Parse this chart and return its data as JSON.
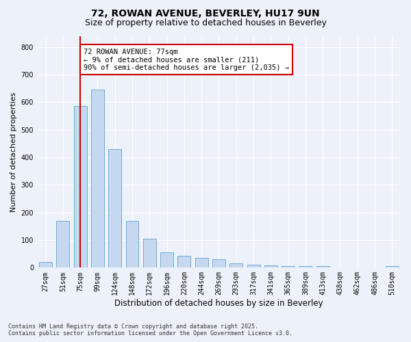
{
  "title_line1": "72, ROWAN AVENUE, BEVERLEY, HU17 9UN",
  "title_line2": "Size of property relative to detached houses in Beverley",
  "xlabel": "Distribution of detached houses by size in Beverley",
  "ylabel": "Number of detached properties",
  "categories": [
    "27sqm",
    "51sqm",
    "75sqm",
    "99sqm",
    "124sqm",
    "148sqm",
    "172sqm",
    "196sqm",
    "220sqm",
    "244sqm",
    "269sqm",
    "293sqm",
    "317sqm",
    "341sqm",
    "365sqm",
    "389sqm",
    "413sqm",
    "438sqm",
    "462sqm",
    "486sqm",
    "510sqm"
  ],
  "values": [
    20,
    170,
    585,
    645,
    430,
    170,
    105,
    55,
    42,
    35,
    30,
    15,
    10,
    8,
    7,
    5,
    5,
    0,
    0,
    0,
    5
  ],
  "bar_color": "#c5d8f0",
  "bar_edge_color": "#6eaad4",
  "bar_width": 0.75,
  "vline_x_idx": 2,
  "vline_color": "#cc0000",
  "annotation_text": "72 ROWAN AVENUE: 77sqm\n← 9% of detached houses are smaller (211)\n90% of semi-detached houses are larger (2,035) →",
  "annotation_box_color": "#ffffff",
  "annotation_border_color": "#cc0000",
  "ylim": [
    0,
    840
  ],
  "yticks": [
    0,
    100,
    200,
    300,
    400,
    500,
    600,
    700,
    800
  ],
  "background_color": "#edf2fa",
  "grid_color": "#ffffff",
  "footer_line1": "Contains HM Land Registry data © Crown copyright and database right 2025.",
  "footer_line2": "Contains public sector information licensed under the Open Government Licence v3.0.",
  "title_fontsize": 10,
  "subtitle_fontsize": 9,
  "tick_fontsize": 7,
  "ylabel_fontsize": 8,
  "xlabel_fontsize": 8.5,
  "annotation_fontsize": 7.5
}
